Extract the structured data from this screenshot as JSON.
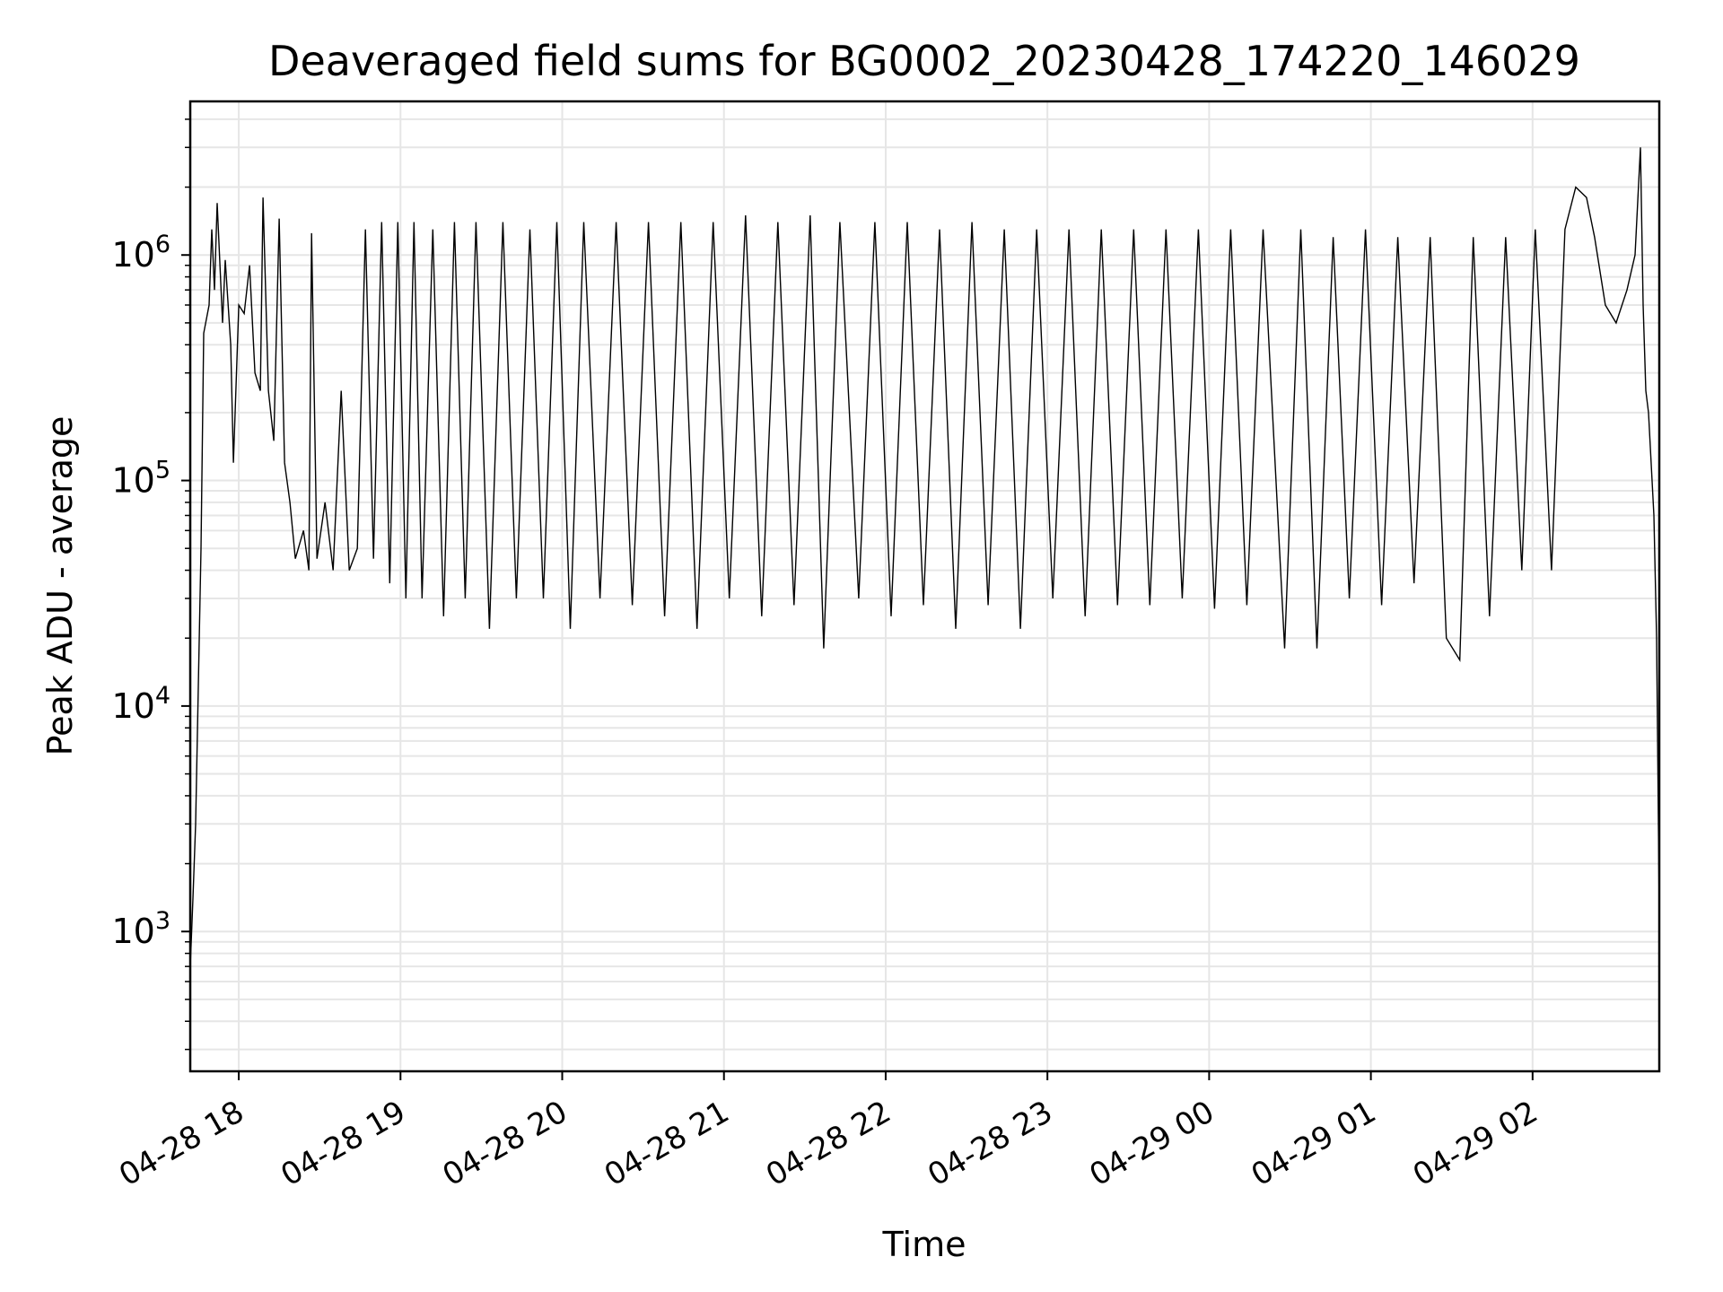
{
  "chart_data": {
    "type": "line",
    "title": "Deaveraged field sums for BG0002_20230428_174220_146029",
    "xlabel": "Time",
    "ylabel": "Peak ADU - average",
    "x_tick_labels": [
      "04-28 18",
      "04-28 19",
      "04-28 20",
      "04-28 21",
      "04-28 22",
      "04-28 23",
      "04-29 00",
      "04-29 01",
      "04-29 02"
    ],
    "y_tick_labels": [
      {
        "base": "10",
        "exp": "3"
      },
      {
        "base": "10",
        "exp": "4"
      },
      {
        "base": "10",
        "exp": "5"
      },
      {
        "base": "10",
        "exp": "6"
      }
    ],
    "x_range": [
      "2023-04-28 17:42",
      "2023-04-29 02:47"
    ],
    "ylim": [
      240,
      4800000
    ],
    "yscale": "log",
    "grid": true,
    "series": [
      {
        "color": "#000000",
        "points": [
          [
            "2023-04-28 17:42",
            700
          ],
          [
            "2023-04-28 17:43",
            1400
          ],
          [
            "2023-04-28 17:44",
            3000
          ],
          [
            "2023-04-28 17:46",
            50000
          ],
          [
            "2023-04-28 17:47",
            450000
          ],
          [
            "2023-04-28 17:49",
            600000
          ],
          [
            "2023-04-28 17:50",
            1300000
          ],
          [
            "2023-04-28 17:51",
            700000
          ],
          [
            "2023-04-28 17:52",
            1700000
          ],
          [
            "2023-04-28 17:54",
            500000
          ],
          [
            "2023-04-28 17:55",
            950000
          ],
          [
            "2023-04-28 17:57",
            400000
          ],
          [
            "2023-04-28 17:58",
            120000
          ],
          [
            "2023-04-28 18:00",
            600000
          ],
          [
            "2023-04-28 18:02",
            550000
          ],
          [
            "2023-04-28 18:04",
            900000
          ],
          [
            "2023-04-28 18:06",
            300000
          ],
          [
            "2023-04-28 18:08",
            250000
          ],
          [
            "2023-04-28 18:09",
            1800000
          ],
          [
            "2023-04-28 18:11",
            250000
          ],
          [
            "2023-04-28 18:13",
            150000
          ],
          [
            "2023-04-28 18:15",
            1450000
          ],
          [
            "2023-04-28 18:17",
            120000
          ],
          [
            "2023-04-28 18:19",
            80000
          ],
          [
            "2023-04-28 18:21",
            45000
          ],
          [
            "2023-04-28 18:24",
            60000
          ],
          [
            "2023-04-28 18:26",
            40000
          ],
          [
            "2023-04-28 18:27",
            1250000
          ],
          [
            "2023-04-28 18:29",
            45000
          ],
          [
            "2023-04-28 18:32",
            80000
          ],
          [
            "2023-04-28 18:35",
            40000
          ],
          [
            "2023-04-28 18:38",
            250000
          ],
          [
            "2023-04-28 18:41",
            40000
          ],
          [
            "2023-04-28 18:44",
            50000
          ],
          [
            "2023-04-28 18:47",
            1300000
          ],
          [
            "2023-04-28 18:50",
            45000
          ],
          [
            "2023-04-28 18:53",
            1400000
          ],
          [
            "2023-04-28 18:56",
            35000
          ],
          [
            "2023-04-28 18:59",
            1400000
          ],
          [
            "2023-04-28 19:02",
            30000
          ],
          [
            "2023-04-28 19:05",
            1400000
          ],
          [
            "2023-04-28 19:08",
            30000
          ],
          [
            "2023-04-28 19:12",
            1300000
          ],
          [
            "2023-04-28 19:16",
            25000
          ],
          [
            "2023-04-28 19:20",
            1400000
          ],
          [
            "2023-04-28 19:24",
            30000
          ],
          [
            "2023-04-28 19:28",
            1400000
          ],
          [
            "2023-04-28 19:33",
            22000
          ],
          [
            "2023-04-28 19:38",
            1400000
          ],
          [
            "2023-04-28 19:43",
            30000
          ],
          [
            "2023-04-28 19:48",
            1300000
          ],
          [
            "2023-04-28 19:53",
            30000
          ],
          [
            "2023-04-28 19:58",
            1400000
          ],
          [
            "2023-04-28 20:03",
            22000
          ],
          [
            "2023-04-28 20:08",
            1400000
          ],
          [
            "2023-04-28 20:14",
            30000
          ],
          [
            "2023-04-28 20:20",
            1400000
          ],
          [
            "2023-04-28 20:26",
            28000
          ],
          [
            "2023-04-28 20:32",
            1400000
          ],
          [
            "2023-04-28 20:38",
            25000
          ],
          [
            "2023-04-28 20:44",
            1400000
          ],
          [
            "2023-04-28 20:50",
            22000
          ],
          [
            "2023-04-28 20:56",
            1400000
          ],
          [
            "2023-04-28 21:02",
            30000
          ],
          [
            "2023-04-28 21:08",
            1500000
          ],
          [
            "2023-04-28 21:14",
            25000
          ],
          [
            "2023-04-28 21:20",
            1400000
          ],
          [
            "2023-04-28 21:26",
            28000
          ],
          [
            "2023-04-28 21:32",
            1500000
          ],
          [
            "2023-04-28 21:37",
            18000
          ],
          [
            "2023-04-28 21:43",
            1400000
          ],
          [
            "2023-04-28 21:50",
            30000
          ],
          [
            "2023-04-28 21:56",
            1400000
          ],
          [
            "2023-04-28 22:02",
            25000
          ],
          [
            "2023-04-28 22:08",
            1400000
          ],
          [
            "2023-04-28 22:14",
            28000
          ],
          [
            "2023-04-28 22:20",
            1300000
          ],
          [
            "2023-04-28 22:26",
            22000
          ],
          [
            "2023-04-28 22:32",
            1400000
          ],
          [
            "2023-04-28 22:38",
            28000
          ],
          [
            "2023-04-28 22:44",
            1300000
          ],
          [
            "2023-04-28 22:50",
            22000
          ],
          [
            "2023-04-28 22:56",
            1300000
          ],
          [
            "2023-04-28 23:02",
            30000
          ],
          [
            "2023-04-28 23:08",
            1300000
          ],
          [
            "2023-04-28 23:14",
            25000
          ],
          [
            "2023-04-28 23:20",
            1300000
          ],
          [
            "2023-04-28 23:26",
            28000
          ],
          [
            "2023-04-28 23:32",
            1300000
          ],
          [
            "2023-04-28 23:38",
            28000
          ],
          [
            "2023-04-28 23:44",
            1300000
          ],
          [
            "2023-04-28 23:50",
            30000
          ],
          [
            "2023-04-28 23:56",
            1300000
          ],
          [
            "2023-04-29 00:02",
            27000
          ],
          [
            "2023-04-29 00:08",
            1300000
          ],
          [
            "2023-04-29 00:14",
            28000
          ],
          [
            "2023-04-29 00:20",
            1300000
          ],
          [
            "2023-04-29 00:28",
            18000
          ],
          [
            "2023-04-29 00:34",
            1300000
          ],
          [
            "2023-04-29 00:40",
            18000
          ],
          [
            "2023-04-29 00:46",
            1200000
          ],
          [
            "2023-04-29 00:52",
            30000
          ],
          [
            "2023-04-29 00:58",
            1300000
          ],
          [
            "2023-04-29 01:04",
            28000
          ],
          [
            "2023-04-29 01:10",
            1200000
          ],
          [
            "2023-04-29 01:16",
            35000
          ],
          [
            "2023-04-29 01:22",
            1200000
          ],
          [
            "2023-04-29 01:28",
            20000
          ],
          [
            "2023-04-29 01:33",
            16000
          ],
          [
            "2023-04-29 01:38",
            1200000
          ],
          [
            "2023-04-29 01:44",
            25000
          ],
          [
            "2023-04-29 01:50",
            1200000
          ],
          [
            "2023-04-29 01:56",
            40000
          ],
          [
            "2023-04-29 02:01",
            1300000
          ],
          [
            "2023-04-29 02:07",
            40000
          ],
          [
            "2023-04-29 02:12",
            1300000
          ],
          [
            "2023-04-29 02:16",
            2000000
          ],
          [
            "2023-04-29 02:20",
            1800000
          ],
          [
            "2023-04-29 02:23",
            1200000
          ],
          [
            "2023-04-29 02:27",
            600000
          ],
          [
            "2023-04-29 02:31",
            500000
          ],
          [
            "2023-04-29 02:35",
            700000
          ],
          [
            "2023-04-29 02:38",
            1000000
          ],
          [
            "2023-04-29 02:40",
            3000000
          ],
          [
            "2023-04-29 02:41",
            600000
          ],
          [
            "2023-04-29 02:42",
            250000
          ],
          [
            "2023-04-29 02:43",
            200000
          ],
          [
            "2023-04-29 02:45",
            70000
          ],
          [
            "2023-04-29 02:46",
            20000
          ],
          [
            "2023-04-29 02:47",
            1200
          ]
        ]
      }
    ]
  }
}
